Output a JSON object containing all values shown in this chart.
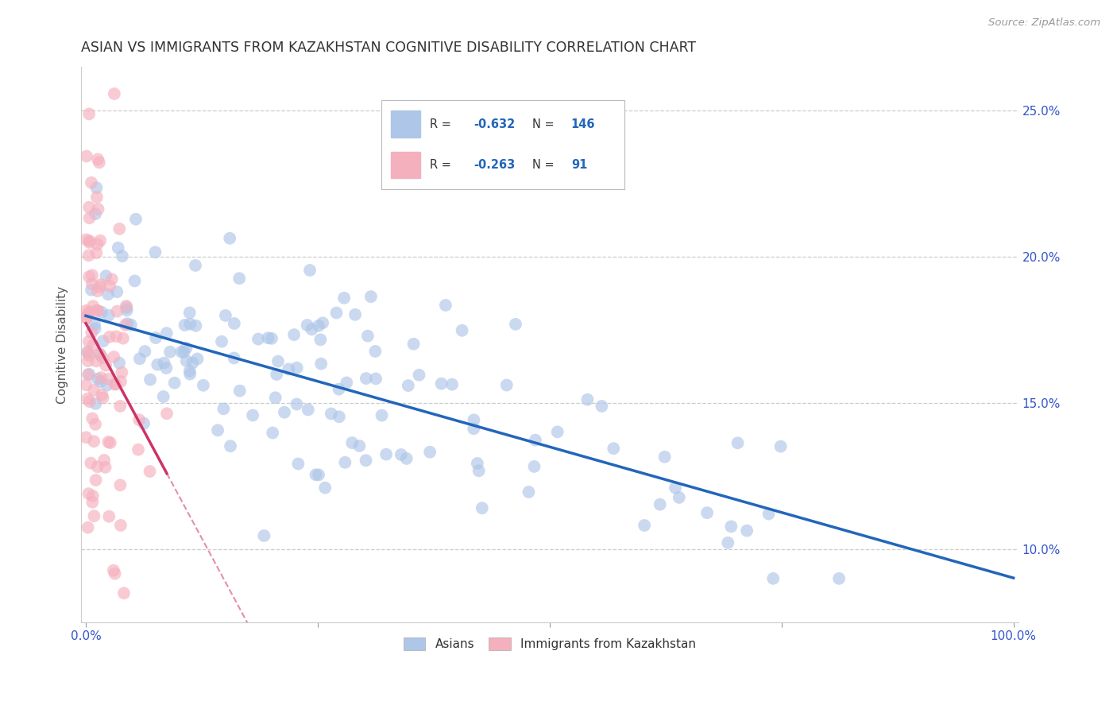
{
  "title": "ASIAN VS IMMIGRANTS FROM KAZAKHSTAN COGNITIVE DISABILITY CORRELATION CHART",
  "source": "Source: ZipAtlas.com",
  "ylabel_label": "Cognitive Disability",
  "legend_blue_r": "-0.632",
  "legend_blue_n": "146",
  "legend_pink_r": "-0.263",
  "legend_pink_n": "91",
  "legend_label_blue": "Asians",
  "legend_label_pink": "Immigrants from Kazakhstan",
  "blue_color": "#aec6e8",
  "blue_line_color": "#2266bb",
  "pink_color": "#f5b0be",
  "pink_line_color": "#cc3366",
  "background_color": "#ffffff",
  "grid_color": "#cccccc",
  "title_color": "#333333",
  "source_color": "#999999",
  "axis_label_color": "#555555",
  "tick_label_color": "#3355cc",
  "ylim": [
    0.075,
    0.265
  ],
  "xlim": [
    -0.005,
    1.005
  ],
  "ytick_positions": [
    0.1,
    0.15,
    0.2,
    0.25
  ],
  "ytick_labels": [
    "10.0%",
    "15.0%",
    "20.0%",
    "25.0%"
  ],
  "xtick_positions": [
    0.0,
    0.25,
    0.5,
    0.75,
    1.0
  ],
  "xtick_labels": [
    "0.0%",
    "",
    "",
    "",
    "100.0%"
  ]
}
